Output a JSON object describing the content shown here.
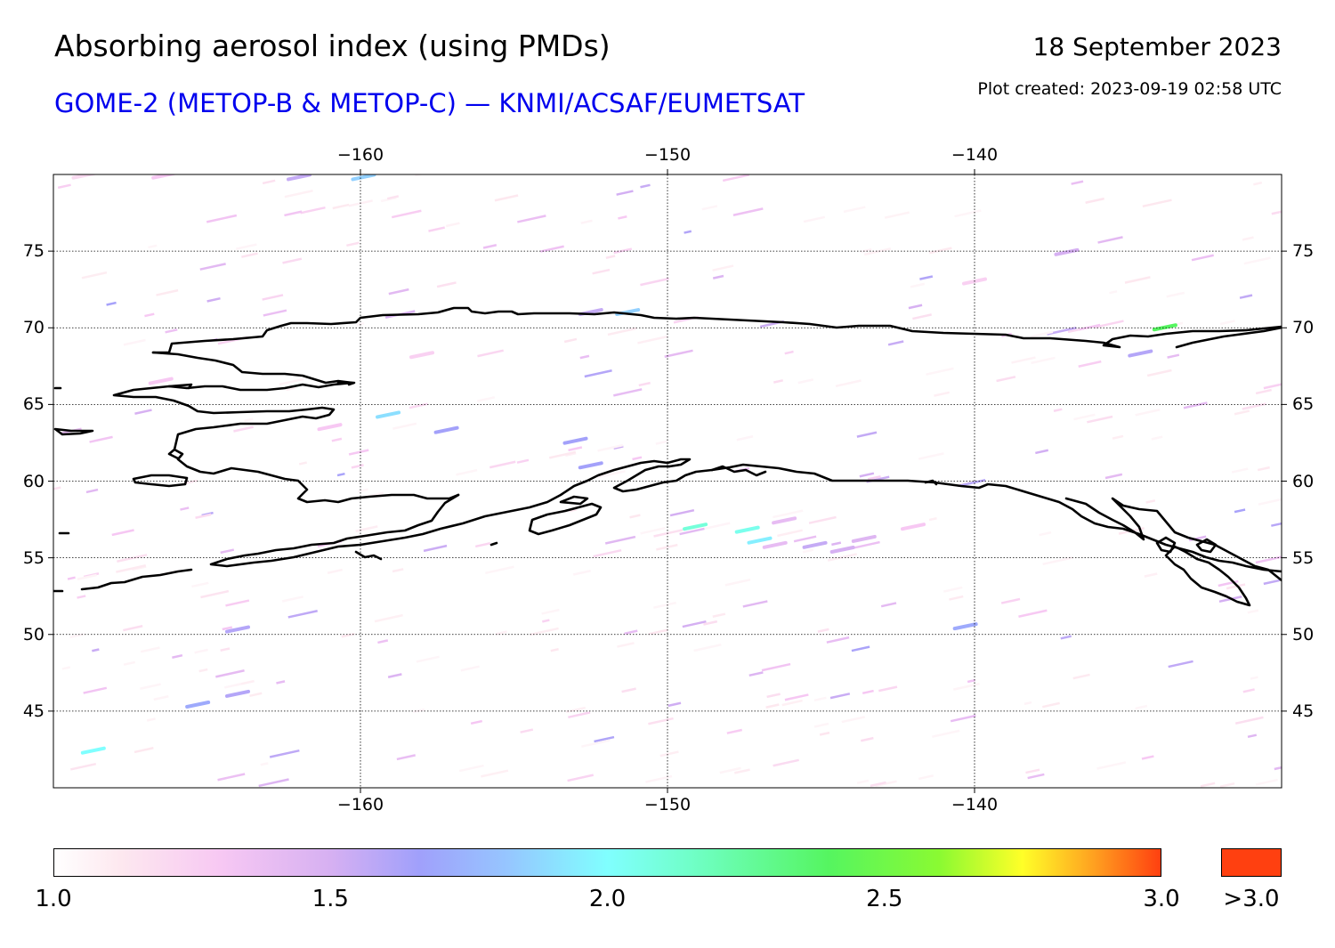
{
  "title": "Absorbing aerosol index (using PMDs)",
  "subtitle": "GOME-2 (METOP-B & METOP-C) — KNMI/ACSAF/EUMETSAT",
  "date": "18 September 2023",
  "plot_created": "Plot created: 2023-09-19 02:58 UTC",
  "colors": {
    "subtitle": "#0000ee",
    "grid": "#000000",
    "coast": "#000000",
    "overflow": "#ff4010"
  },
  "map": {
    "lon_range": [
      -170,
      -130
    ],
    "lat_range": [
      40,
      80
    ],
    "lon_ticks": [
      "−160",
      "−150",
      "−140"
    ],
    "lon_tick_values": [
      -160,
      -150,
      -140
    ],
    "lat_ticks": [
      "75",
      "70",
      "65",
      "60",
      "55",
      "50",
      "45"
    ],
    "lat_tick_values": [
      75,
      70,
      65,
      60,
      55,
      50,
      45
    ],
    "grid": true,
    "gridline_style": "dotted"
  },
  "colorbar": {
    "ticks": [
      "1.0",
      "1.5",
      "2.0",
      "2.5",
      "3.0"
    ],
    "tick_values": [
      1.0,
      1.5,
      2.0,
      2.5,
      3.0
    ],
    "overflow_label": ">3.0",
    "stops": [
      {
        "v": 1.0,
        "c": "#ffffff"
      },
      {
        "v": 1.12,
        "c": "#fde8ef"
      },
      {
        "v": 1.3,
        "c": "#f7c8f3"
      },
      {
        "v": 1.5,
        "c": "#d6b0f2"
      },
      {
        "v": 1.66,
        "c": "#a0a0fb"
      },
      {
        "v": 1.82,
        "c": "#96c6ff"
      },
      {
        "v": 2.0,
        "c": "#80ffff"
      },
      {
        "v": 2.15,
        "c": "#70ffc8"
      },
      {
        "v": 2.4,
        "c": "#55f560"
      },
      {
        "v": 2.6,
        "c": "#8afa32"
      },
      {
        "v": 2.75,
        "c": "#ffff28"
      },
      {
        "v": 2.88,
        "c": "#ffa020"
      },
      {
        "v": 3.0,
        "c": "#ff4010"
      }
    ]
  },
  "aerosol_patches": [
    {
      "lon": -147.4,
      "lat": 56.8,
      "value": 2.05
    },
    {
      "lon": -147.0,
      "lat": 56.1,
      "value": 1.95
    },
    {
      "lon": -146.5,
      "lat": 55.8,
      "value": 1.4
    },
    {
      "lon": -145.2,
      "lat": 55.8,
      "value": 1.55
    },
    {
      "lon": -144.3,
      "lat": 55.5,
      "value": 1.5
    },
    {
      "lon": -143.6,
      "lat": 56.2,
      "value": 1.45
    },
    {
      "lon": -146.2,
      "lat": 57.4,
      "value": 1.4
    },
    {
      "lon": -149.1,
      "lat": 57.0,
      "value": 2.1
    },
    {
      "lon": -152.5,
      "lat": 61.0,
      "value": 1.65
    },
    {
      "lon": -153.0,
      "lat": 62.6,
      "value": 1.65
    },
    {
      "lon": -159.1,
      "lat": 64.3,
      "value": 1.9
    },
    {
      "lon": -157.2,
      "lat": 63.3,
      "value": 1.65
    },
    {
      "lon": -164.0,
      "lat": 46.1,
      "value": 1.6
    },
    {
      "lon": -164.0,
      "lat": 50.3,
      "value": 1.6
    },
    {
      "lon": -140.3,
      "lat": 50.5,
      "value": 1.7
    },
    {
      "lon": -151.3,
      "lat": 71.0,
      "value": 1.85
    },
    {
      "lon": -152.5,
      "lat": 71.0,
      "value": 1.55
    },
    {
      "lon": -159.9,
      "lat": 79.8,
      "value": 1.85
    },
    {
      "lon": -162.0,
      "lat": 79.8,
      "value": 1.55
    },
    {
      "lon": -169.0,
      "lat": 79.9,
      "value": 1.2
    },
    {
      "lon": -166.4,
      "lat": 79.9,
      "value": 1.3
    },
    {
      "lon": -133.8,
      "lat": 70.0,
      "value": 2.4
    },
    {
      "lon": -134.6,
      "lat": 68.3,
      "value": 1.6
    },
    {
      "lon": -165.3,
      "lat": 45.4,
      "value": 1.7
    },
    {
      "lon": -168.7,
      "lat": 42.4,
      "value": 2.0
    },
    {
      "lon": -142.0,
      "lat": 57.0,
      "value": 1.3
    },
    {
      "lon": -166.5,
      "lat": 66.5,
      "value": 1.3
    },
    {
      "lon": -161.0,
      "lat": 63.5,
      "value": 1.3
    },
    {
      "lon": -158.0,
      "lat": 68.2,
      "value": 1.25
    },
    {
      "lon": -140.0,
      "lat": 73.0,
      "value": 1.25
    },
    {
      "lon": -137.0,
      "lat": 74.9,
      "value": 1.5
    }
  ]
}
